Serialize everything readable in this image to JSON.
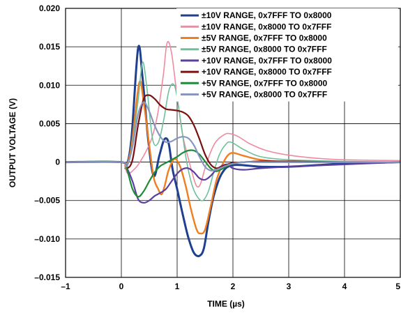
{
  "chart_data": {
    "type": "line",
    "xlabel": "TIME (µs)",
    "ylabel": "OUTPUT VOLTAGE (V)",
    "xlim": [
      -1,
      5
    ],
    "ylim": [
      -0.015,
      0.02
    ],
    "x_ticks": [
      -1,
      0,
      1,
      2,
      3,
      4,
      5
    ],
    "x_tick_labels": [
      "–1",
      "0",
      "1",
      "2",
      "3",
      "4",
      "5"
    ],
    "y_ticks": [
      -0.015,
      -0.01,
      -0.005,
      0,
      0.005,
      0.01,
      0.015,
      0.02
    ],
    "y_tick_labels": [
      "–0.015",
      "–0.010",
      "–0.005",
      "0",
      "0.005",
      "0.010",
      "0.015",
      "0.020"
    ],
    "grid": true,
    "legend_position": "top-right",
    "series": [
      {
        "name": "±10V RANGE, 0x7FFF TO 0x8000",
        "color": "#1f3f8f",
        "x": [
          -1,
          0,
          0.08,
          0.18,
          0.3,
          0.38,
          0.48,
          0.58,
          0.68,
          0.76,
          0.82,
          0.86,
          0.92,
          1.0,
          1.1,
          1.2,
          1.3,
          1.4,
          1.48,
          1.56,
          1.66,
          1.8,
          2.0,
          2.5,
          3.0,
          3.5,
          4.0,
          5.0
        ],
        "y": [
          0,
          0,
          -0.0007,
          0.003,
          0.0148,
          0.011,
          0.003,
          -0.0018,
          0.0008,
          0.0028,
          0.003,
          0.002,
          -0.001,
          -0.0035,
          -0.0068,
          -0.0098,
          -0.0118,
          -0.0122,
          -0.0112,
          -0.0078,
          -0.0043,
          -0.0015,
          -0.0004,
          -0.0006,
          -0.0006,
          -0.0004,
          -0.0002,
          0
        ]
      },
      {
        "name": "±10V RANGE, 0x8000 TO 0x7FFF",
        "color": "#f08aa0",
        "x": [
          -1,
          0,
          0.06,
          0.12,
          0.25,
          0.35,
          0.45,
          0.55,
          0.65,
          0.75,
          0.82,
          0.9,
          1.0,
          1.1,
          1.2,
          1.3,
          1.36,
          1.42,
          1.5,
          1.6,
          1.7,
          1.85,
          1.95,
          2.1,
          2.3,
          2.6,
          3.0,
          3.5,
          4.0,
          5.0
        ],
        "y": [
          0,
          0,
          -0.0005,
          -0.0015,
          -0.0008,
          0.0002,
          0.0015,
          0.0032,
          0.0062,
          0.0112,
          0.0155,
          0.0142,
          0.0085,
          0.0035,
          0.0005,
          -0.0022,
          -0.0032,
          -0.0028,
          -0.0008,
          0.0013,
          0.0027,
          0.0036,
          0.0037,
          0.0033,
          0.0024,
          0.0015,
          0.0009,
          0.0005,
          0.0003,
          0.0002
        ]
      },
      {
        "name": "±5V RANGE, 0x7FFF TO 0x8000",
        "color": "#f07d1e",
        "x": [
          -1,
          0,
          0.08,
          0.18,
          0.32,
          0.4,
          0.5,
          0.58,
          0.66,
          0.72,
          0.78,
          0.85,
          0.95,
          1.05,
          1.15,
          1.25,
          1.35,
          1.42,
          1.5,
          1.6,
          1.7,
          1.8,
          1.9,
          2.0,
          2.2,
          2.5,
          3.0,
          4.0,
          5.0
        ],
        "y": [
          0,
          0,
          -0.0006,
          0.002,
          0.0103,
          0.0078,
          0.0022,
          -0.002,
          -0.0035,
          -0.0042,
          -0.003,
          -0.001,
          0.0004,
          -0.0005,
          -0.003,
          -0.0062,
          -0.0088,
          -0.0093,
          -0.0088,
          -0.0058,
          -0.0025,
          -0.0005,
          0.0008,
          0.0012,
          0.0008,
          0.0003,
          0,
          0,
          0
        ]
      },
      {
        "name": "±5V RANGE, 0x8000 TO 0x7FFF",
        "color": "#6dc19a",
        "x": [
          -1,
          0,
          0.08,
          0.18,
          0.3,
          0.38,
          0.46,
          0.56,
          0.66,
          0.76,
          0.86,
          0.96,
          1.06,
          1.16,
          1.26,
          1.36,
          1.46,
          1.56,
          1.66,
          1.76,
          1.86,
          1.96,
          2.2,
          2.5,
          3.0,
          4.0,
          5.0
        ],
        "y": [
          0,
          0,
          -0.0005,
          0.0015,
          0.008,
          0.013,
          0.0095,
          0.003,
          0.0025,
          0.0055,
          0.0095,
          0.0098,
          0.0055,
          0.0005,
          -0.0028,
          -0.0045,
          -0.005,
          -0.0038,
          -0.0012,
          0.001,
          0.0022,
          0.0026,
          0.0016,
          0.0007,
          0.0003,
          0.0001,
          0
        ]
      },
      {
        "name": "+10V RANGE, 0x7FFF TO 0x8000",
        "color": "#5b3f9e",
        "x": [
          -1,
          0,
          0.1,
          0.2,
          0.3,
          0.4,
          0.5,
          0.6,
          0.7,
          0.8,
          0.9,
          1.0,
          1.1,
          1.2,
          1.3,
          1.4,
          1.5,
          1.6,
          1.7,
          1.8,
          1.9,
          2.0,
          2.2,
          2.5,
          3.0,
          4.0,
          5.0
        ],
        "y": [
          0,
          0,
          -0.0008,
          -0.0025,
          -0.0048,
          -0.0053,
          -0.005,
          -0.0044,
          -0.004,
          -0.0035,
          -0.0025,
          -0.0015,
          -0.0009,
          -0.0008,
          -0.0013,
          -0.0021,
          -0.0023,
          -0.0018,
          -0.001,
          -0.0005,
          -0.0003,
          -0.0008,
          -0.001,
          -0.0008,
          -0.0006,
          -0.0003,
          0
        ]
      },
      {
        "name": "+10V RANGE, 0x8000 TO 0x7FFF",
        "color": "#7a1010",
        "x": [
          -1,
          0,
          0.1,
          0.2,
          0.3,
          0.4,
          0.5,
          0.6,
          0.7,
          0.8,
          0.9,
          1.0,
          1.1,
          1.2,
          1.3,
          1.4,
          1.5,
          1.6,
          1.7,
          1.8,
          1.9,
          2.0,
          2.2,
          2.5,
          3.0,
          4.0,
          5.0
        ],
        "y": [
          0,
          0,
          -0.0008,
          0.0003,
          0.0048,
          0.0082,
          0.0087,
          0.0082,
          0.0074,
          0.0069,
          0.0068,
          0.0067,
          0.0065,
          0.006,
          0.0048,
          0.003,
          0.001,
          -0.0003,
          -0.0008,
          -0.0006,
          -0.0003,
          -0.0001,
          0,
          0.0001,
          0.0001,
          0,
          0
        ]
      },
      {
        "name": "+5V RANGE, 0x7FFF TO 0x8000",
        "color": "#1f8a3a",
        "x": [
          -1,
          0,
          0.1,
          0.2,
          0.3,
          0.4,
          0.5,
          0.6,
          0.7,
          0.8,
          0.9,
          1.0,
          1.1,
          1.2,
          1.3,
          1.4,
          1.5,
          1.6,
          1.7,
          1.8,
          1.9,
          2.0,
          2.2,
          2.5,
          3.0,
          4.0,
          5.0
        ],
        "y": [
          0,
          0,
          -0.001,
          -0.0035,
          -0.0045,
          -0.0038,
          -0.0025,
          -0.0013,
          -0.0005,
          -0.0001,
          0.0003,
          0.0007,
          0.0012,
          0.0015,
          0.0015,
          0.001,
          0.0001,
          -0.0008,
          -0.0012,
          -0.0009,
          -0.0005,
          -0.0002,
          0,
          0,
          0,
          0,
          0
        ]
      },
      {
        "name": "+5V RANGE, 0x8000 TO 0x7FFF",
        "color": "#8895bd",
        "x": [
          -1,
          0,
          0.1,
          0.2,
          0.3,
          0.4,
          0.5,
          0.6,
          0.7,
          0.8,
          0.9,
          1.0,
          1.1,
          1.2,
          1.3,
          1.4,
          1.5,
          1.6,
          1.7,
          1.8,
          1.9,
          2.0,
          2.2,
          2.5,
          3.0,
          4.0,
          5.0
        ],
        "y": [
          0,
          0,
          -0.0005,
          0.002,
          0.0062,
          0.0078,
          0.0066,
          0.0047,
          0.0033,
          0.0026,
          0.0027,
          0.0031,
          0.0033,
          0.0031,
          0.0022,
          0.0007,
          -0.0006,
          -0.0011,
          -0.001,
          -0.0007,
          -0.0004,
          -0.0002,
          0,
          0,
          0,
          0,
          0
        ]
      }
    ]
  }
}
